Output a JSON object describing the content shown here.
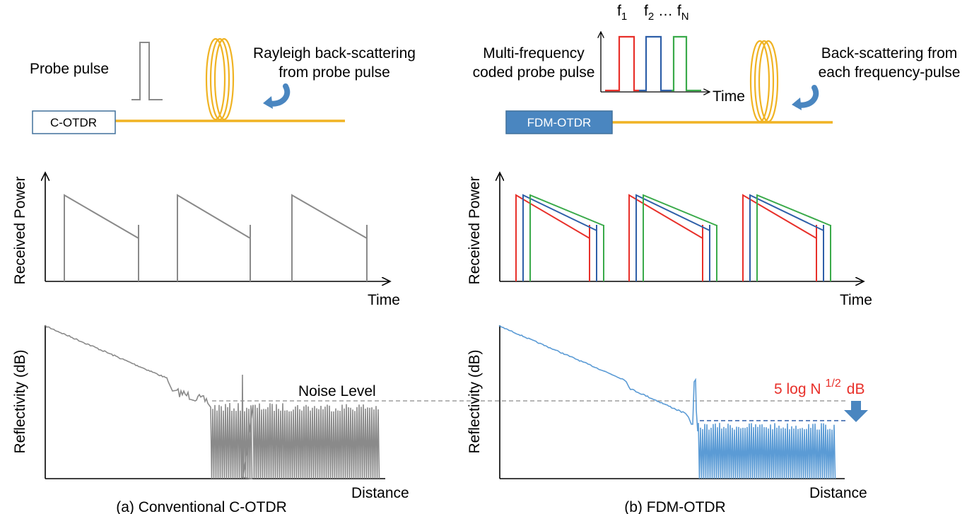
{
  "colors": {
    "fiber": "#f0b323",
    "gray_trace": "#8a8a8a",
    "blue_trace": "#5b9bd5",
    "box_fill": "#4a86c0",
    "box_border": "#41719c",
    "red": "#e8302a",
    "blue": "#2e5fa8",
    "green": "#3aaa4a",
    "noise_line": "#8a8a8a",
    "arrow_blue": "#4a86c0"
  },
  "icons": {
    "fiber_coil": "fiber-coil-icon",
    "backscatter": "curved-arrow-icon",
    "noise_drop": "down-arrow-icon"
  },
  "left": {
    "device_label": "C-OTDR",
    "probe_label": "Probe pulse",
    "scatter_line1": "Rayleigh back-scattering",
    "scatter_line2": "from probe pulse",
    "power_ylabel": "Received Power",
    "power_xlabel": "Time",
    "refl_ylabel": "Reflectivity (dB)",
    "refl_xlabel": "Distance",
    "noise_label": "Noise Level",
    "caption": "(a) Conventional C-OTDR"
  },
  "right": {
    "device_label": "FDM-OTDR",
    "probe_line1": "Multi-frequency",
    "probe_line2": "coded probe pulse",
    "freq_f": "f",
    "freq_sub1": "1",
    "freq_sub2": "2",
    "freq_subN": "N",
    "freq_ellipsis": " … ",
    "inset_xlabel": "Time",
    "scatter_line1": "Back-scattering from",
    "scatter_line2": "each frequency-pulse",
    "power_ylabel": "Received Power",
    "power_xlabel": "Time",
    "refl_ylabel": "Reflectivity (dB)",
    "refl_xlabel": "Distance",
    "gain_prefix": "5 log N",
    "gain_sup": "1/2",
    "gain_suffix": "dB",
    "caption": "(b) FDM-OTDR"
  }
}
